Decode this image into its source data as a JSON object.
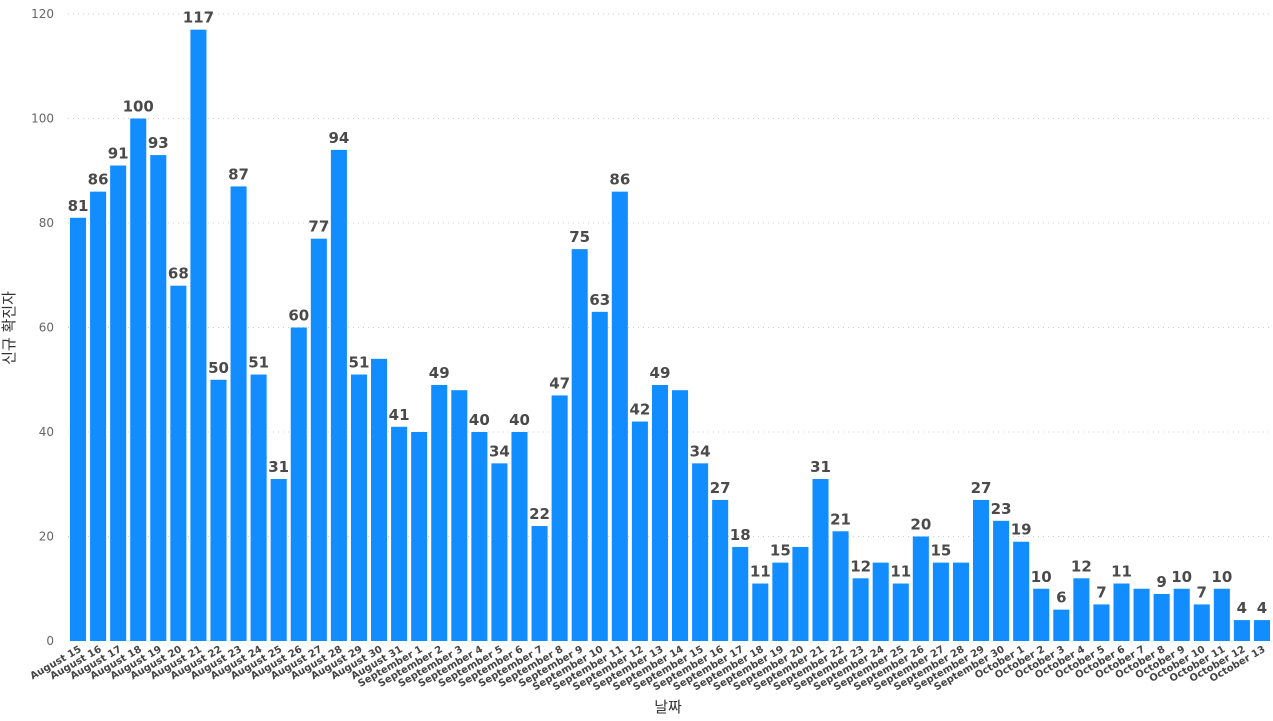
{
  "chart_data": {
    "type": "bar",
    "title": "",
    "xlabel": "날짜",
    "ylabel": "신규 확진자",
    "ylim": [
      0,
      120
    ],
    "yticks": [
      0,
      20,
      40,
      60,
      80,
      100,
      120
    ],
    "grid": true,
    "bar_color": "#118DFF",
    "categories": [
      "August 15",
      "August 16",
      "August 17",
      "August 18",
      "August 19",
      "August 20",
      "August 21",
      "August 22",
      "August 23",
      "August 24",
      "August 25",
      "August 26",
      "August 27",
      "August 28",
      "August 29",
      "August 30",
      "August 31",
      "September 1",
      "September 2",
      "September 3",
      "September 4",
      "September 5",
      "September 6",
      "September 7",
      "September 8",
      "September 9",
      "September 10",
      "September 11",
      "September 12",
      "September 13",
      "September 14",
      "September 15",
      "September 16",
      "September 17",
      "September 18",
      "September 19",
      "September 20",
      "September 21",
      "September 22",
      "September 23",
      "September 24",
      "September 25",
      "September 26",
      "September 27",
      "September 28",
      "September 29",
      "September 30",
      "October 1",
      "October 2",
      "October 3",
      "October 4",
      "October 5",
      "October 6",
      "October 7",
      "October 8",
      "October 9",
      "October 10",
      "October 11",
      "October 12",
      "October 13"
    ],
    "values": [
      81,
      86,
      91,
      100,
      93,
      68,
      117,
      50,
      87,
      51,
      31,
      60,
      77,
      94,
      51,
      54,
      41,
      40,
      49,
      48,
      40,
      34,
      40,
      22,
      47,
      75,
      63,
      86,
      42,
      49,
      48,
      34,
      27,
      18,
      11,
      15,
      18,
      31,
      21,
      12,
      15,
      11,
      20,
      15,
      15,
      27,
      23,
      19,
      10,
      6,
      12,
      7,
      11,
      10,
      9,
      10,
      7,
      10,
      4,
      4
    ],
    "data_labels_shown": [
      true,
      true,
      true,
      true,
      true,
      true,
      true,
      true,
      true,
      true,
      true,
      true,
      true,
      true,
      true,
      false,
      true,
      false,
      true,
      false,
      true,
      true,
      true,
      true,
      true,
      true,
      true,
      true,
      true,
      true,
      false,
      true,
      true,
      true,
      true,
      true,
      false,
      true,
      true,
      true,
      false,
      true,
      true,
      true,
      false,
      true,
      true,
      true,
      true,
      true,
      true,
      true,
      true,
      false,
      true,
      true,
      true,
      true,
      true,
      true
    ]
  }
}
